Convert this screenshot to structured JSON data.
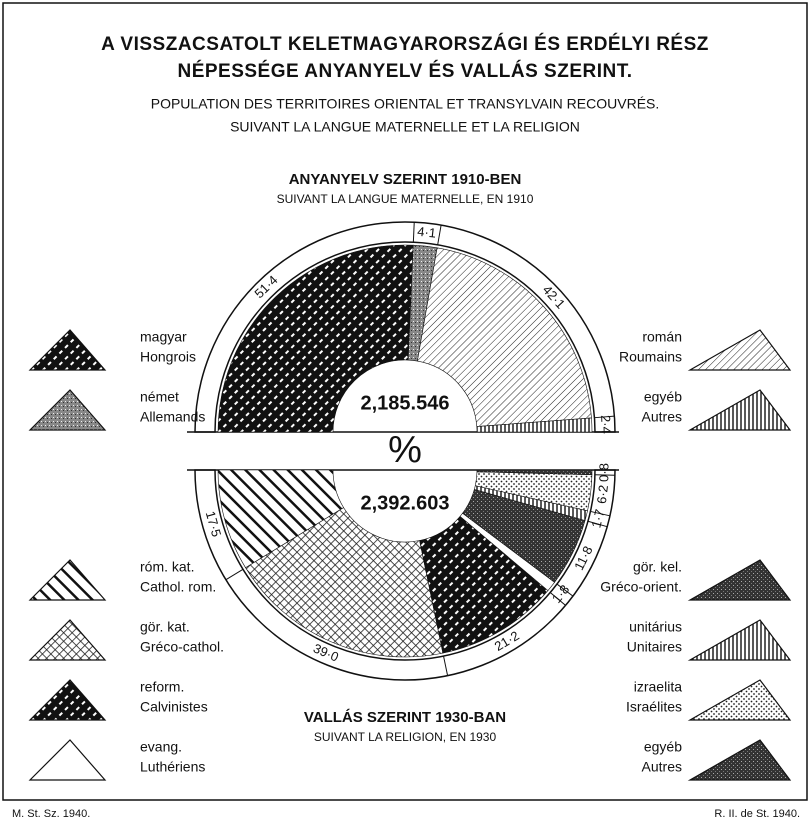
{
  "header": {
    "title_lines": [
      "A VISSZACSATOLT KELETMAGYARORSZÁGI ÉS ERDÉLYI RÉSZ",
      "NÉPESSÉGE ANYANYELV ÉS VALLÁS SZERINT."
    ],
    "subtitle_lines": [
      "POPULATION DES TERRITOIRES ORIENTAL ET TRANSYLVAIN RECOUVRÉS.",
      "SUIVANT LA LANGUE MATERNELLE ET LA RELIGION"
    ],
    "center_symbol": "%"
  },
  "footer": {
    "left": "M. St. Sz. 1940.",
    "right": "R. II. de St. 1940."
  },
  "chart_data": [
    {
      "type": "semi-donut",
      "half": "upper",
      "title": "ANYANYELV SZERINT 1910-BEN",
      "subtitle": "SUIVANT LA LANGUE MATERNELLE, EN 1910",
      "center_label": "2,185.546",
      "categories": [
        "magyar",
        "német",
        "román",
        "egyéb"
      ],
      "labels_fr": [
        "Hongrois",
        "Allemands",
        "Roumains",
        "Autres"
      ],
      "values": [
        51.4,
        4.1,
        42.1,
        2.4
      ],
      "value_labels": [
        "51·4",
        "4·1",
        "42·1",
        "2·4"
      ],
      "patterns": [
        "dark-dash",
        "gray-speckle",
        "diag-thin",
        "vertical"
      ]
    },
    {
      "type": "semi-donut",
      "half": "lower",
      "title": "VALLÁS SZERINT 1930-BAN",
      "subtitle": "SUIVANT LA RELIGION, EN 1930",
      "center_label": "2,392.603",
      "categories": [
        "róm. kat.",
        "gör. kat.",
        "reform.",
        "evang.",
        "gör. kel.",
        "unitárius",
        "izraelita",
        "egyéb"
      ],
      "labels_fr": [
        "Cathol. rom.",
        "Gréco-cathol.",
        "Calvinistes",
        "Luthériens",
        "Gréco-orient.",
        "Unitaires",
        "Israélites",
        "Autres"
      ],
      "values": [
        17.5,
        39.0,
        21.2,
        1.8,
        11.8,
        1.7,
        6.2,
        0.8
      ],
      "value_labels": [
        "17·5",
        "39·0",
        "21·2",
        "1·8",
        "11·8",
        "1·7",
        "6·2",
        "0·8"
      ],
      "patterns": [
        "diag-thick",
        "cross",
        "dark-dash",
        "white",
        "dark-speckle",
        "vertical",
        "dots",
        "dark-speckle"
      ]
    }
  ]
}
